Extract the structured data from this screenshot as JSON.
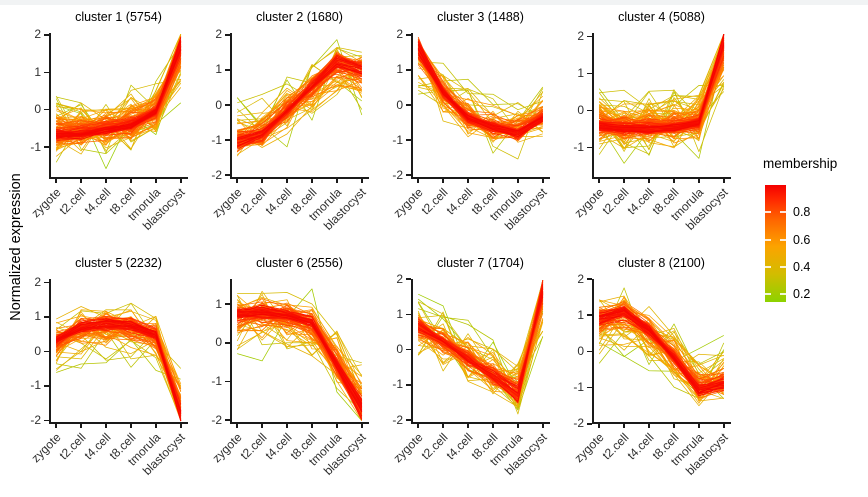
{
  "window": {
    "top_strip_color": "#f1f3f4"
  },
  "figure": {
    "y_axis_title": "Normalized expression",
    "categories": [
      "zygote",
      "t2.cell",
      "t4.cell",
      "t8.cell",
      "tmorula",
      "blastocyst"
    ]
  },
  "legend": {
    "title": "membership",
    "tick_labels": [
      "0.8",
      "0.6",
      "0.4",
      "0.2"
    ],
    "tick_values": [
      0.8,
      0.6,
      0.4,
      0.2
    ],
    "range": [
      0.142,
      1.0
    ]
  },
  "chart_data": {
    "type": "line",
    "description": "Fuzzy c-means clustering of gene expression trajectories; 8 facet panels of many gene lines colored by cluster membership",
    "x_categories": [
      "zygote",
      "t2.cell",
      "t4.cell",
      "t8.cell",
      "tmorula",
      "blastocyst"
    ],
    "ylabel": "Normalized expression",
    "grid": false,
    "legend_position": "right",
    "color_scale": {
      "label": "membership",
      "stops": [
        {
          "t": 0.142,
          "c": "#8CD200"
        },
        {
          "t": 0.35,
          "c": "#D3BC00"
        },
        {
          "t": 0.55,
          "c": "#FCA300"
        },
        {
          "t": 0.75,
          "c": "#FF6400"
        },
        {
          "t": 0.9,
          "c": "#FF2600"
        },
        {
          "t": 1.0,
          "c": "#F40000"
        }
      ]
    },
    "panels": [
      {
        "id": 1,
        "title": "cluster 1 (5754)",
        "size": 5754,
        "centers": [
          -0.62,
          -0.6,
          -0.5,
          -0.38,
          -0.05,
          1.6
        ],
        "yticks": [
          2,
          1,
          0,
          -1
        ],
        "ylim": [
          -1.8,
          2.05
        ],
        "n_lines": 150,
        "seed": 11
      },
      {
        "id": 2,
        "title": "cluster 2 (1680)",
        "size": 1680,
        "centers": [
          -1.0,
          -0.8,
          -0.15,
          0.5,
          1.15,
          0.95
        ],
        "yticks": [
          2,
          1,
          0,
          -1,
          -2
        ],
        "ylim": [
          -2.05,
          2.05
        ],
        "n_lines": 105,
        "seed": 22
      },
      {
        "id": 3,
        "title": "cluster 3 (1488)",
        "size": 1488,
        "centers": [
          1.55,
          0.35,
          -0.35,
          -0.6,
          -0.75,
          -0.35
        ],
        "yticks": [
          2,
          1,
          0,
          -1,
          -2
        ],
        "ylim": [
          -2.05,
          2.05
        ],
        "n_lines": 100,
        "seed": 33
      },
      {
        "id": 4,
        "title": "cluster 4 (5088)",
        "size": 5088,
        "centers": [
          -0.38,
          -0.45,
          -0.45,
          -0.42,
          -0.3,
          1.75
        ],
        "yticks": [
          2,
          1,
          0,
          -1
        ],
        "ylim": [
          -1.8,
          2.1
        ],
        "n_lines": 150,
        "seed": 44
      },
      {
        "id": 5,
        "title": "cluster 5 (2232)",
        "size": 2232,
        "centers": [
          0.3,
          0.65,
          0.75,
          0.7,
          0.45,
          -1.75
        ],
        "yticks": [
          2,
          1,
          0,
          -1,
          -2
        ],
        "ylim": [
          -2.05,
          2.1
        ],
        "n_lines": 110,
        "seed": 55
      },
      {
        "id": 6,
        "title": "cluster 6 (2556)",
        "size": 2556,
        "centers": [
          0.7,
          0.75,
          0.68,
          0.5,
          -0.55,
          -1.6
        ],
        "yticks": [
          1,
          0,
          -1,
          -2
        ],
        "ylim": [
          -2.05,
          1.65
        ],
        "n_lines": 115,
        "seed": 66
      },
      {
        "id": 7,
        "title": "cluster 7 (1704)",
        "size": 1704,
        "centers": [
          0.65,
          0.25,
          -0.25,
          -0.7,
          -1.2,
          1.6
        ],
        "yticks": [
          2,
          1,
          0,
          -1,
          -2
        ],
        "ylim": [
          -2.05,
          2.0
        ],
        "n_lines": 100,
        "seed": 77
      },
      {
        "id": 8,
        "title": "cluster 8 (2100)",
        "size": 2100,
        "centers": [
          0.85,
          1.05,
          0.55,
          -0.15,
          -1.0,
          -0.85
        ],
        "yticks": [
          2,
          1,
          0,
          -1,
          -2
        ],
        "ylim": [
          -1.95,
          2.0
        ],
        "n_lines": 110,
        "seed": 88
      }
    ]
  }
}
